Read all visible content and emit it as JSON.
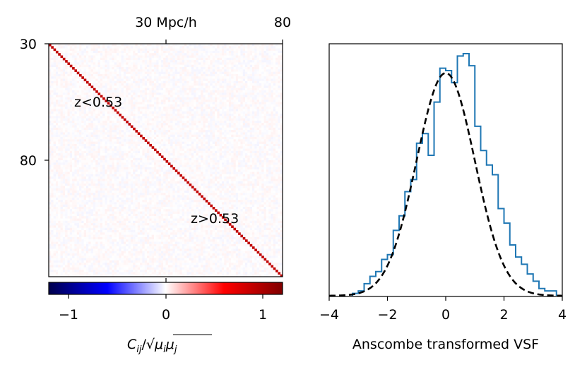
{
  "chart_data": [
    {
      "type": "heatmap",
      "title": "",
      "matrix_size": 100,
      "diagonal_value": 1.0,
      "offdiagonal_noise_amplitude": 0.06,
      "annotations": [
        "z<0.53",
        "z>0.53"
      ],
      "left_ticks": [
        "30",
        "80"
      ],
      "top_ticks": [
        "30 Mpc/h",
        "80"
      ],
      "colorbar": {
        "colormap": "seismic",
        "range": [
          -1.2,
          1.2
        ],
        "ticks": [
          -1,
          0,
          1
        ],
        "tick_labels": [
          "−1",
          "0",
          "1"
        ],
        "label_parts": [
          "C",
          "ij",
          "/",
          "√",
          "μ",
          "i",
          "μ",
          "j"
        ],
        "colors": [
          "#00004c",
          "#0000ff",
          "#ffffff",
          "#ff0000",
          "#800000"
        ]
      },
      "diagonal_color": "#c00000"
    },
    {
      "type": "histogram",
      "xlabel": "Anscombe transformed VSF",
      "ylabel": "",
      "xlim": [
        -4,
        4
      ],
      "xticks": [
        -4,
        -2,
        0,
        2,
        4
      ],
      "xtick_labels": [
        "−4",
        "−2",
        "0",
        "2",
        "4"
      ],
      "bin_width": 0.2,
      "bin_edges_start": -3.2,
      "counts": [
        0.01,
        0.02,
        0.05,
        0.08,
        0.1,
        0.15,
        0.17,
        0.27,
        0.33,
        0.43,
        0.48,
        0.63,
        0.67,
        0.58,
        0.8,
        0.94,
        0.93,
        0.88,
        0.99,
        1.0,
        0.95,
        0.7,
        0.6,
        0.54,
        0.5,
        0.36,
        0.3,
        0.21,
        0.16,
        0.13,
        0.09,
        0.06,
        0.03,
        0.02,
        0.02
      ],
      "series_color": "#1f77b4",
      "fit": {
        "type": "gaussian",
        "mean": 0.0,
        "sigma": 1.0,
        "peak": 0.92,
        "style": "dashed",
        "color": "#000000"
      }
    }
  ]
}
